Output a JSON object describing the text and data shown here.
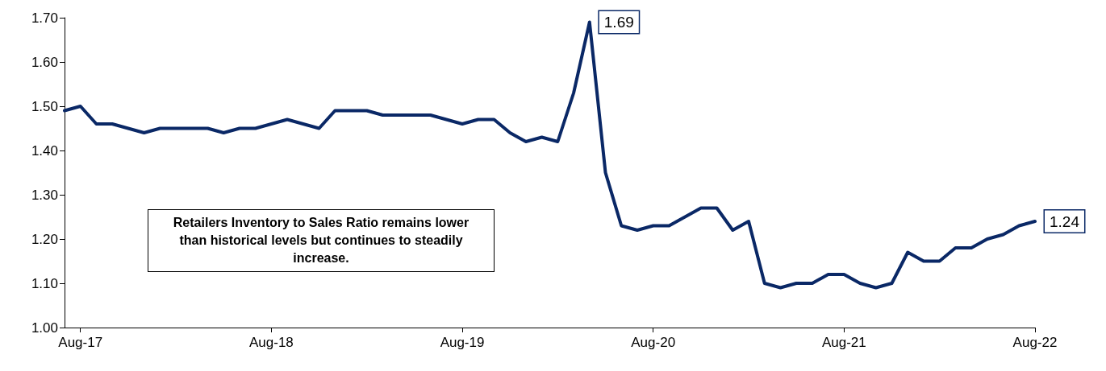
{
  "chart_data": {
    "type": "line",
    "categories": [
      null,
      "Aug-17",
      null,
      null,
      null,
      null,
      null,
      null,
      null,
      null,
      null,
      null,
      null,
      "Aug-18",
      null,
      null,
      null,
      null,
      null,
      null,
      null,
      null,
      null,
      null,
      null,
      "Aug-19",
      null,
      null,
      null,
      null,
      null,
      null,
      null,
      null,
      null,
      null,
      null,
      "Aug-20",
      null,
      null,
      null,
      null,
      null,
      null,
      null,
      null,
      null,
      null,
      null,
      "Aug-21",
      null,
      null,
      null,
      null,
      null,
      null,
      null,
      null,
      null,
      null,
      null,
      "Aug-22"
    ],
    "series": [
      {
        "color": "#0a2866",
        "values": [
          1.49,
          1.5,
          1.46,
          1.46,
          1.45,
          1.44,
          1.45,
          1.45,
          1.45,
          1.45,
          1.44,
          1.45,
          1.45,
          1.46,
          1.47,
          1.46,
          1.45,
          1.49,
          1.49,
          1.49,
          1.48,
          1.48,
          1.48,
          1.48,
          1.47,
          1.46,
          1.47,
          1.47,
          1.44,
          1.42,
          1.43,
          1.42,
          1.53,
          1.69,
          1.35,
          1.23,
          1.22,
          1.23,
          1.23,
          1.25,
          1.27,
          1.27,
          1.22,
          1.24,
          1.1,
          1.09,
          1.1,
          1.1,
          1.12,
          1.12,
          1.1,
          1.09,
          1.1,
          1.17,
          1.15,
          1.15,
          1.18,
          1.18,
          1.2,
          1.21,
          1.23,
          1.24
        ],
        "value_labels": [
          null,
          null,
          null,
          null,
          null,
          null,
          null,
          null,
          null,
          null,
          null,
          null,
          null,
          null,
          null,
          null,
          null,
          null,
          null,
          null,
          null,
          null,
          null,
          null,
          null,
          null,
          null,
          null,
          null,
          null,
          null,
          null,
          null,
          "1.69",
          null,
          null,
          null,
          null,
          null,
          null,
          null,
          null,
          null,
          null,
          null,
          null,
          null,
          null,
          null,
          null,
          null,
          null,
          null,
          null,
          null,
          null,
          null,
          null,
          null,
          null,
          null,
          "1.24"
        ]
      }
    ],
    "ylim": [
      1.0,
      1.7
    ],
    "yticks": [
      {
        "value": 1.0,
        "label": "1.00"
      },
      {
        "value": 1.1,
        "label": "1.10"
      },
      {
        "value": 1.2,
        "label": "1.20"
      },
      {
        "value": 1.3,
        "label": "1.30"
      },
      {
        "value": 1.4,
        "label": "1.40"
      },
      {
        "value": 1.5,
        "label": "1.50"
      },
      {
        "value": 1.6,
        "label": "1.60"
      },
      {
        "value": 1.7,
        "label": "1.70"
      }
    ],
    "annotations": [
      "Retailers Inventory to Sales Ratio remains lower than historical levels but continues to steadily increase."
    ],
    "grid": false,
    "marker": "none",
    "line_style": "solid"
  }
}
